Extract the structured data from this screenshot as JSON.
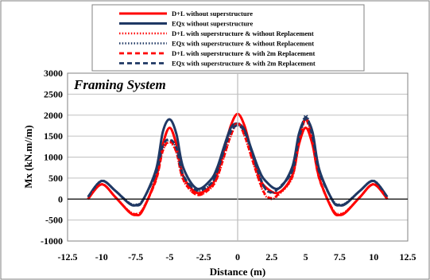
{
  "chart_data": {
    "type": "line",
    "annotation": "Framing System",
    "xlabel": "Distance (m)",
    "ylabel": "Mx (kN.m//m)",
    "xlim": [
      -12.5,
      12.5
    ],
    "ylim": [
      -1000,
      3000
    ],
    "x_ticks": [
      "-12.5",
      "-10",
      "-7.5",
      "-5",
      "-2.5",
      "0",
      "2.5",
      "5",
      "7.5",
      "10",
      "12.5"
    ],
    "y_ticks": [
      "-1000",
      "-500",
      "0",
      "500",
      "1000",
      "1500",
      "2000",
      "2500",
      "3000"
    ],
    "legend_position": "top",
    "grid": {
      "horizontal": true,
      "vertical": false
    },
    "colors": {
      "red": "#ff0000",
      "navy": "#1f3864",
      "grid": "#c0c0c0",
      "zero_line": "#000000"
    },
    "series": [
      {
        "name": "D+L without superstructure",
        "color": "#ff0000",
        "style": "solid",
        "x": [
          -11,
          -10,
          -9,
          -8,
          -7.5,
          -7,
          -6,
          -5.5,
          -5,
          -4.5,
          -4,
          -3,
          -2,
          -1.5,
          -1,
          -0.5,
          0,
          0.5,
          1,
          1.5,
          2,
          3,
          4,
          4.5,
          5,
          5.5,
          6,
          7,
          7.5,
          8,
          9,
          10,
          11
        ],
        "y": [
          0,
          350,
          50,
          -300,
          -380,
          -280,
          500,
          1300,
          1700,
          1300,
          550,
          150,
          300,
          600,
          1150,
          1750,
          2030,
          1750,
          1150,
          600,
          300,
          150,
          550,
          1300,
          1700,
          1300,
          500,
          -280,
          -380,
          -300,
          50,
          350,
          0
        ]
      },
      {
        "name": "EQx without superstructure",
        "color": "#1f3864",
        "style": "solid",
        "x": [
          -11,
          -10,
          -9,
          -8,
          -7.5,
          -7,
          -6,
          -5.5,
          -5,
          -4.5,
          -4,
          -3,
          -2,
          -1.5,
          -1,
          -0.5,
          0,
          0.5,
          1,
          1.5,
          2,
          3,
          4,
          4.5,
          5,
          5.5,
          6,
          7,
          7.5,
          8,
          9,
          10,
          11
        ],
        "y": [
          50,
          430,
          200,
          -100,
          -150,
          -50,
          700,
          1600,
          1900,
          1550,
          750,
          250,
          450,
          750,
          1250,
          1700,
          1800,
          1650,
          1200,
          750,
          450,
          250,
          750,
          1550,
          1900,
          1600,
          700,
          -50,
          -150,
          -100,
          200,
          430,
          50
        ]
      },
      {
        "name": "D+L with superstructure & without Replacement",
        "color": "#ff0000",
        "style": "dotted",
        "x": [
          -11,
          -10,
          -9,
          -8,
          -7.5,
          -7,
          -6,
          -5.5,
          -5,
          -4.5,
          -4,
          -3,
          -2,
          -1.5,
          -1,
          -0.5,
          0,
          0.5,
          1,
          1.5,
          2,
          2.5,
          3,
          4,
          4.5,
          5,
          5.5,
          6,
          7,
          7.5,
          8,
          9,
          10,
          11
        ],
        "y": [
          0,
          360,
          50,
          -280,
          -350,
          -250,
          450,
          1150,
          1350,
          1100,
          450,
          100,
          250,
          500,
          1000,
          1500,
          1800,
          1500,
          1000,
          500,
          100,
          0,
          100,
          500,
          1300,
          1950,
          1350,
          500,
          -250,
          -350,
          -280,
          50,
          360,
          0
        ]
      },
      {
        "name": "EQx with superstructure & without Replacement",
        "color": "#1f3864",
        "style": "dotted",
        "x": [
          -11,
          -10,
          -9,
          -8,
          -7.5,
          -7,
          -6,
          -5.5,
          -5,
          -4.5,
          -4,
          -3,
          -2,
          -1.5,
          -1,
          -0.5,
          0,
          0.5,
          1,
          1.5,
          2,
          2.5,
          3,
          4,
          4.5,
          5,
          5.5,
          6,
          7,
          7.5,
          8,
          9,
          10,
          11
        ],
        "y": [
          50,
          440,
          200,
          -80,
          -130,
          -30,
          600,
          1250,
          1400,
          1200,
          550,
          200,
          350,
          650,
          1150,
          1600,
          1750,
          1600,
          1150,
          650,
          250,
          150,
          250,
          650,
          1400,
          2000,
          1500,
          650,
          -30,
          -130,
          -80,
          200,
          440,
          50
        ]
      },
      {
        "name": "D+L with superstructure & with 2m Replacement",
        "color": "#ff0000",
        "style": "dashed",
        "x": [
          -11,
          -10,
          -9,
          -8,
          -7.5,
          -7,
          -6,
          -5.5,
          -5,
          -4.5,
          -4,
          -3,
          -2,
          -1.5,
          -1,
          -0.5,
          0,
          0.5,
          1,
          1.5,
          2,
          2.5,
          3,
          4,
          4.5,
          5,
          5.5,
          6,
          7,
          7.5,
          8,
          9,
          10,
          11
        ],
        "y": [
          0,
          350,
          50,
          -290,
          -360,
          -260,
          450,
          1150,
          1380,
          1120,
          470,
          100,
          260,
          520,
          1020,
          1520,
          1820,
          1520,
          1020,
          520,
          120,
          20,
          120,
          520,
          1320,
          1900,
          1330,
          480,
          -260,
          -360,
          -290,
          50,
          350,
          0
        ]
      },
      {
        "name": "EQx with superstructure & with 2m Replacement",
        "color": "#1f3864",
        "style": "dashed",
        "x": [
          -11,
          -10,
          -9,
          -8,
          -7.5,
          -7,
          -6,
          -5.5,
          -5,
          -4.5,
          -4,
          -3,
          -2,
          -1.5,
          -1,
          -0.5,
          0,
          0.5,
          1,
          1.5,
          2,
          2.5,
          3,
          4,
          4.5,
          5,
          5.5,
          6,
          7,
          7.5,
          8,
          9,
          10,
          11
        ],
        "y": [
          50,
          430,
          200,
          -90,
          -140,
          -40,
          620,
          1270,
          1420,
          1220,
          570,
          210,
          360,
          660,
          1160,
          1610,
          1760,
          1610,
          1160,
          660,
          260,
          160,
          260,
          660,
          1420,
          1950,
          1480,
          640,
          -40,
          -140,
          -90,
          200,
          430,
          50
        ]
      }
    ]
  }
}
